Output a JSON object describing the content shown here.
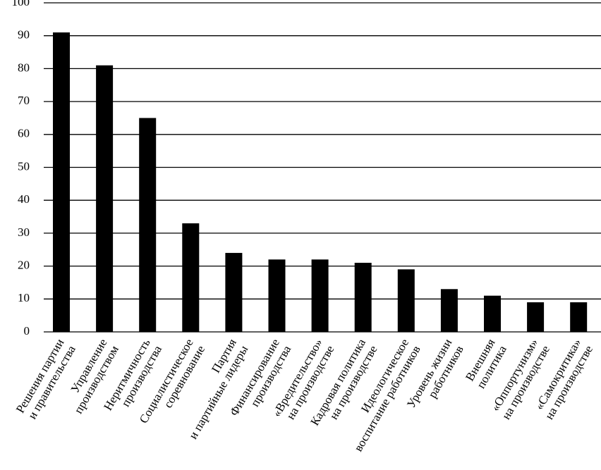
{
  "chart_data": {
    "type": "bar",
    "categories": [
      [
        "Решения партии",
        "и правительства"
      ],
      [
        "Управление",
        "производством"
      ],
      [
        "Неритмичность",
        "производства"
      ],
      [
        "Социалистическое",
        "соревнование"
      ],
      [
        "Партия",
        "и партийные лидеры"
      ],
      [
        "Финансирование",
        "производства"
      ],
      [
        "«Вредительство»",
        "на производстве"
      ],
      [
        "Кадровая политика",
        "на производстве"
      ],
      [
        "Идеологическое",
        "воспитание работников"
      ],
      [
        "Уровень жизни",
        "работников"
      ],
      [
        "Внешняя",
        "политика"
      ],
      [
        "«Оппортунизм»",
        "на производстве"
      ],
      [
        "«Самокритика»",
        "на производстве"
      ]
    ],
    "values": [
      91,
      81,
      65,
      33,
      24,
      22,
      22,
      21,
      19,
      13,
      11,
      9,
      9
    ],
    "color": "#000000",
    "ylim": [
      0,
      100
    ],
    "yticks": [
      0,
      10,
      20,
      30,
      40,
      50,
      60,
      70,
      80,
      90,
      100
    ],
    "grid": true
  }
}
